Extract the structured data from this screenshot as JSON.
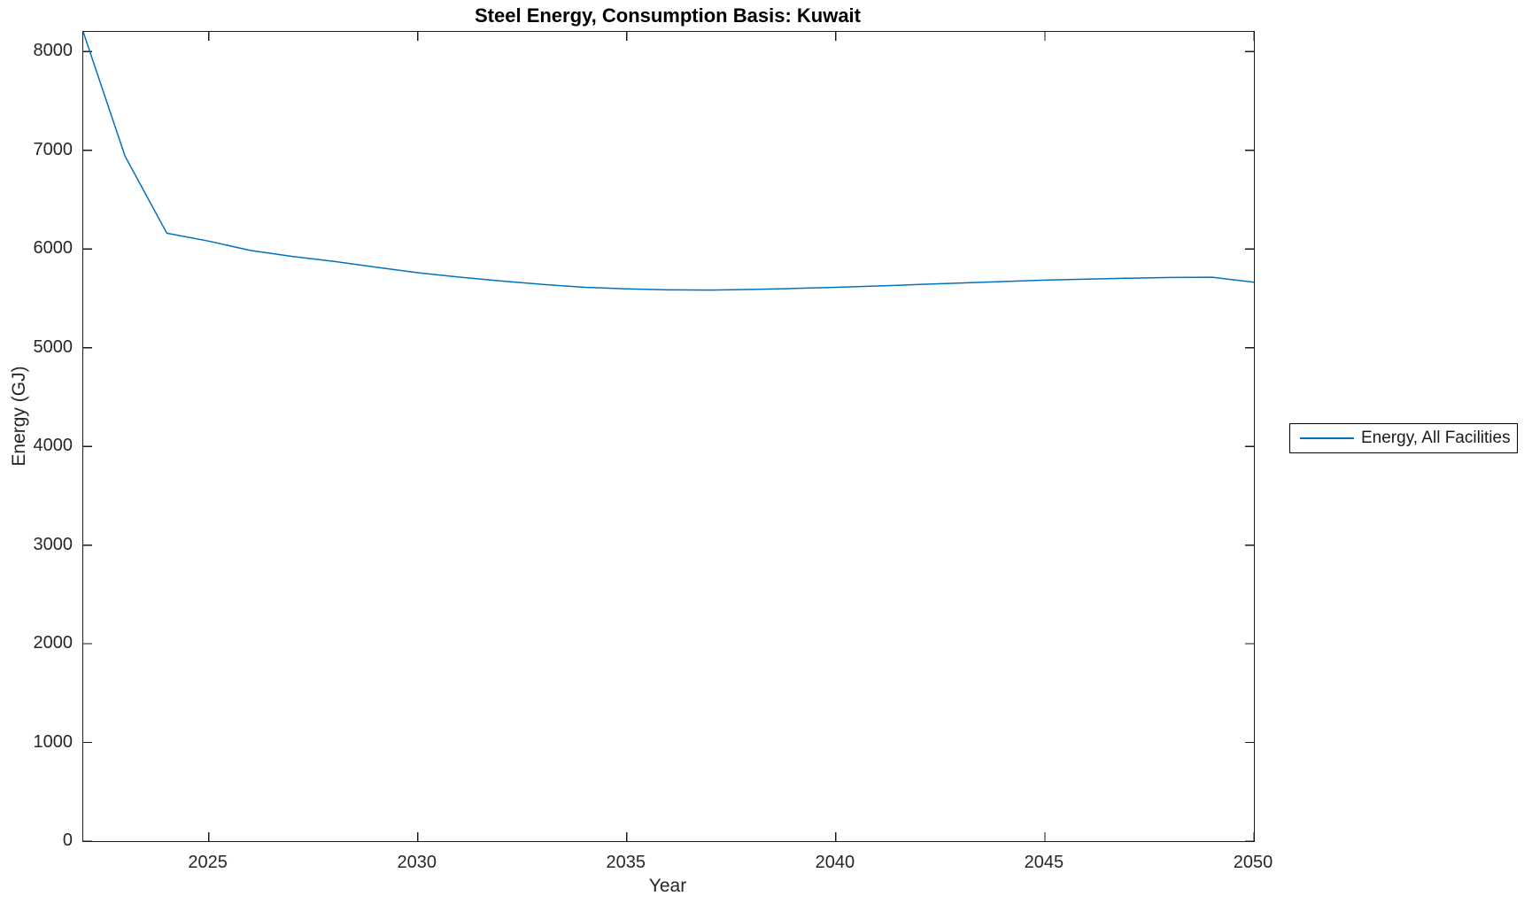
{
  "chart_data": {
    "type": "line",
    "title": "Steel Energy, Consumption Basis: Kuwait",
    "xlabel": "Year",
    "ylabel": "Energy (GJ)",
    "xlim": [
      2022,
      2050
    ],
    "ylim": [
      0,
      8200
    ],
    "x_ticks": [
      2025,
      2030,
      2035,
      2040,
      2045,
      2050
    ],
    "y_ticks": [
      0,
      1000,
      2000,
      3000,
      4000,
      5000,
      6000,
      7000,
      8000
    ],
    "grid": false,
    "legend": {
      "position": "right-outside",
      "entries": [
        "Energy, All Facilities"
      ]
    },
    "series": [
      {
        "name": "Energy, All Facilities",
        "color": "#0072BD",
        "x": [
          2022,
          2023,
          2024,
          2025,
          2026,
          2027,
          2028,
          2029,
          2030,
          2031,
          2032,
          2033,
          2034,
          2035,
          2036,
          2037,
          2038,
          2039,
          2040,
          2041,
          2042,
          2043,
          2044,
          2045,
          2046,
          2047,
          2048,
          2049,
          2050
        ],
        "values": [
          8200,
          6940,
          6160,
          6080,
          5985,
          5925,
          5875,
          5815,
          5760,
          5715,
          5675,
          5640,
          5612,
          5596,
          5586,
          5584,
          5590,
          5600,
          5612,
          5625,
          5640,
          5656,
          5670,
          5684,
          5695,
          5704,
          5711,
          5714,
          5663
        ]
      }
    ],
    "styles": {
      "axis_color": "#1a1a1a",
      "tick_label_color": "#262626",
      "background": "#ffffff",
      "line_width": 1.5,
      "tick_length": 10,
      "ticks_direction": "in",
      "box": true
    }
  }
}
